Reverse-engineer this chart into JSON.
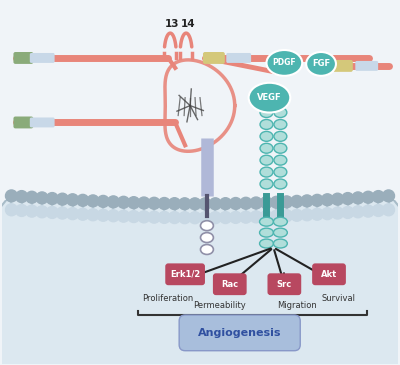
{
  "bg_color": "#dce8f0",
  "white_bg": "#f5f5f5",
  "salmon": "#e8857a",
  "teal": "#4db5b0",
  "teal_light": "#b0deda",
  "teal_dark": "#3a9a96",
  "kinase_color": "#b84860",
  "gray_mem": "#b8c8d4",
  "gray_mem2": "#d0dce8",
  "green_box": "#8aab7a",
  "yellow_box": "#d4c87a",
  "gray_box": "#c8d8e8",
  "angio_fill": "#a8bedc",
  "label_13": "13",
  "label_14": "14",
  "label_VEGF": "VEGF",
  "label_PDGF": "PDGF",
  "label_FGF": "FGF",
  "label_bottom": "Angiogenesis",
  "kinase_labels": [
    "Erk1/2",
    "Rac",
    "Src",
    "Akt"
  ],
  "process_labels": [
    [
      "Proliferation",
      "Permeability"
    ],
    [
      "Migration",
      "Survival"
    ]
  ]
}
